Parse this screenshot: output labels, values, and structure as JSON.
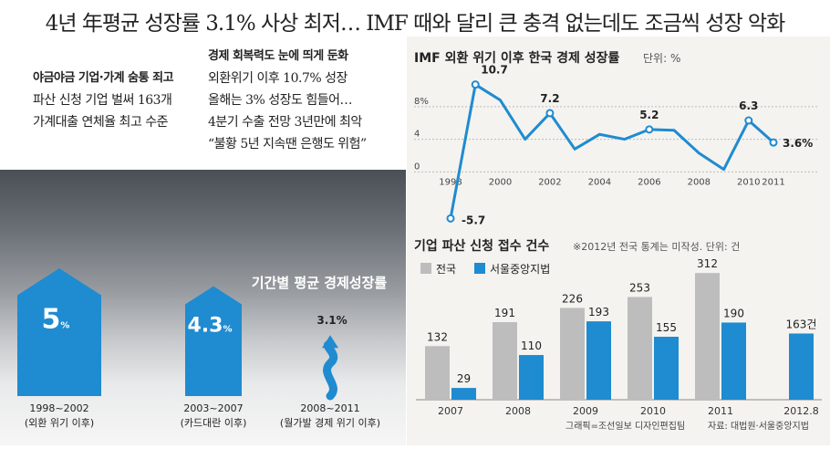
{
  "headline": "4년 年평균 성장률 3.1% 사상 최저… IMF 때와 달리 큰 충격 없는데도 조금씩 성장 악화",
  "bullets_left": {
    "heading": "야금야금 기업·가계 숨통 죄고",
    "lines": [
      "파산 신청 기업 벌써 163개",
      "가계대출 연체율 최고 수준"
    ]
  },
  "bullets_right": {
    "heading": "경제 회복력도 눈에 띄게 둔화",
    "lines": [
      "외환위기 이후 10.7% 성장",
      "올해는 3% 성장도 힘들어…",
      "4분기 수출 전망 3년만에 최악",
      "“불황 5년 지속땐 은행도 위험”"
    ]
  },
  "colors": {
    "accent_blue": "#1f8bd0",
    "gray": "#bdbdbd",
    "line_blue": "#1f8bd0"
  },
  "chart_data": [
    {
      "type": "bar",
      "title": "기간별 평균 경제성장률",
      "categories": [
        "1998~2002",
        "2003~2007",
        "2008~2011"
      ],
      "sublabels": [
        "(외환 위기 이후)",
        "(카드대란 이후)",
        "(월가발 경제 위기 이후)"
      ],
      "values": [
        5,
        4.3,
        3.1
      ],
      "value_labels": [
        "5",
        "4.3",
        "3.1%"
      ],
      "value_suffix": "%"
    },
    {
      "type": "line",
      "title": "IMF 외환 위기 이후 한국 경제 성장률",
      "unit": "단위: %",
      "x": [
        1998,
        1999,
        2000,
        2001,
        2002,
        2003,
        2004,
        2005,
        2006,
        2007,
        2008,
        2009,
        2010,
        2011
      ],
      "values": [
        -5.7,
        10.7,
        8.8,
        4.0,
        7.2,
        2.8,
        4.6,
        4.0,
        5.2,
        5.1,
        2.3,
        0.3,
        6.3,
        3.6
      ],
      "point_labels": [
        {
          "x": 1998,
          "label": "-5.7"
        },
        {
          "x": 1999,
          "label": "10.7"
        },
        {
          "x": 2002,
          "label": "7.2"
        },
        {
          "x": 2006,
          "label": "5.2"
        },
        {
          "x": 2010,
          "label": "6.3"
        },
        {
          "x": 2011,
          "label": "3.6%"
        }
      ],
      "x_ticks": [
        "1998",
        "2000",
        "2002",
        "2004",
        "2006",
        "2008",
        "2010",
        "2011"
      ],
      "y_ticks": [
        "8%",
        "4",
        "0"
      ],
      "ylim": [
        -6,
        11
      ]
    },
    {
      "type": "bar",
      "title": "기업 파산 신청 접수 건수",
      "note": "※2012년 전국 통계는 미작성. 단위: 건",
      "categories": [
        "2007",
        "2008",
        "2009",
        "2010",
        "2011",
        "2012.8"
      ],
      "series": [
        {
          "name": "전국",
          "color": "#bdbdbd",
          "values": [
            132,
            191,
            226,
            253,
            312,
            null
          ]
        },
        {
          "name": "서울중앙지법",
          "color": "#1f8bd0",
          "values": [
            29,
            110,
            193,
            155,
            190,
            163
          ]
        }
      ],
      "last_label_suffix": "건",
      "ylim": [
        0,
        330
      ]
    }
  ],
  "credit": "그래픽=조선일보 디자인편집팀",
  "source": "자료: 대법원·서울중앙지법"
}
